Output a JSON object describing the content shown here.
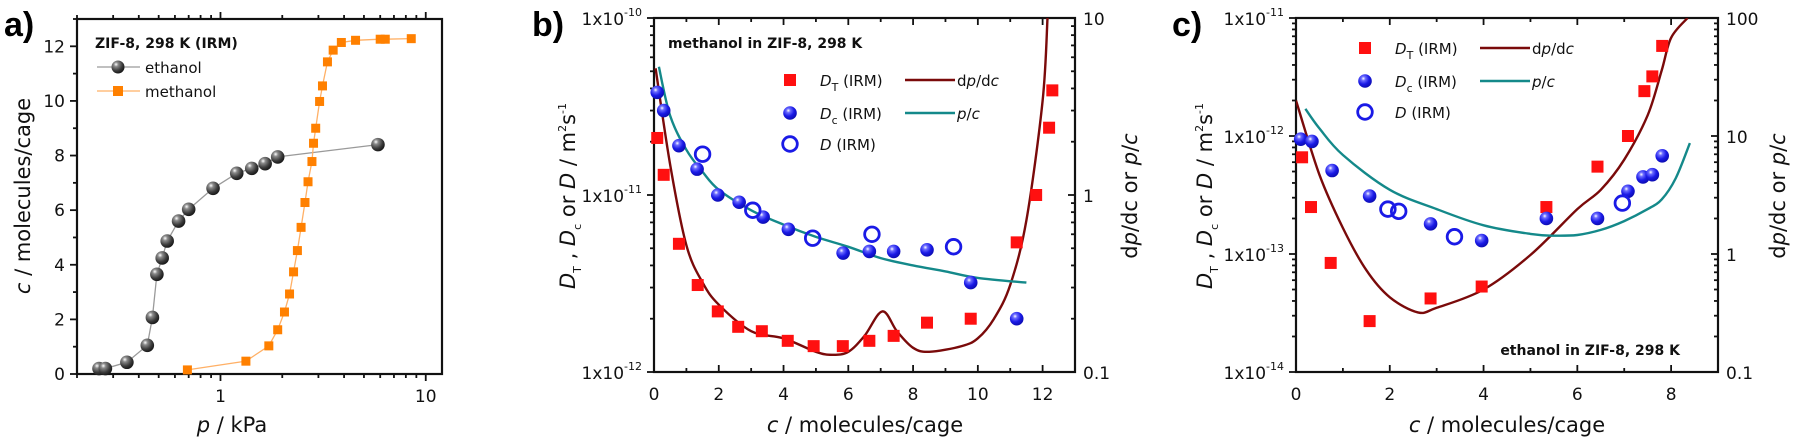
{
  "colors": {
    "ethanol": "#444444",
    "ethanol_line": "#9a9a9a",
    "methanol": "#ff8000",
    "methanol_line": "#ffb066",
    "DT": "#ff1010",
    "Dc": "#1a1ae6",
    "D": "#1a1ae6",
    "dpdc": "#7a0a0a",
    "pc": "#14898a"
  },
  "chart_data": [
    {
      "panel": "a)",
      "type": "scatter",
      "title": "",
      "annotation": "ZIF-8, 298 K (IRM)",
      "xlabel": "p / kPa",
      "ylabel": "c / molecules/cage",
      "xscale": "log",
      "xlim": [
        0.2,
        12
      ],
      "ylim": [
        0,
        13
      ],
      "xticks": [
        1,
        10
      ],
      "xtick_labels": [
        "1",
        "10"
      ],
      "yticks": [
        0,
        2,
        4,
        6,
        8,
        10,
        12
      ],
      "ytick_labels": [
        "0",
        "2",
        "4",
        "6",
        "8",
        "10",
        "12"
      ],
      "legend_position": "top-left",
      "series": [
        {
          "name": "ethanol",
          "marker": "sphere",
          "x": [
            0.256,
            0.275,
            0.35,
            0.44,
            0.466,
            0.49,
            0.52,
            0.55,
            0.625,
            0.7,
            0.92,
            1.2,
            1.42,
            1.65,
            1.9,
            5.85
          ],
          "y": [
            0.2,
            0.2,
            0.43,
            1.05,
            2.07,
            3.65,
            4.25,
            4.87,
            5.6,
            6.03,
            6.8,
            7.35,
            7.53,
            7.7,
            7.95,
            8.4
          ]
        },
        {
          "name": "methanol",
          "marker": "square",
          "x": [
            0.69,
            1.33,
            1.72,
            1.9,
            2.05,
            2.17,
            2.27,
            2.37,
            2.47,
            2.58,
            2.67,
            2.79,
            2.84,
            2.91,
            3.04,
            3.14,
            3.32,
            3.54,
            3.88,
            4.55,
            6.0,
            6.35,
            8.5
          ],
          "y": [
            0.15,
            0.47,
            1.03,
            1.62,
            2.27,
            2.93,
            3.74,
            4.52,
            5.37,
            6.28,
            7.04,
            7.78,
            8.45,
            9.0,
            9.98,
            10.55,
            11.43,
            11.86,
            12.14,
            12.22,
            12.26,
            12.26,
            12.28
          ]
        }
      ]
    },
    {
      "panel": "b)",
      "type": "scatter",
      "annotation": "methanol in ZIF-8, 298 K",
      "xlabel": "c / molecules/cage",
      "ylabel": "D_T , D_c or D / m^2 s^-1",
      "ylabel_right": "dp/dc or p/c",
      "xlim": [
        0,
        13
      ],
      "ylim": [
        1e-12,
        1e-10
      ],
      "ylim_right": [
        0.1,
        10
      ],
      "yscale": "log",
      "xticks": [
        0,
        2,
        4,
        6,
        8,
        10,
        12
      ],
      "xtick_labels": [
        "0",
        "2",
        "4",
        "6",
        "8",
        "10",
        "12"
      ],
      "ytick_labels": [
        {
          "base": "1x10",
          "exp": "-12"
        },
        {
          "base": "1x10",
          "exp": "-11"
        },
        {
          "base": "1x10",
          "exp": "-10"
        }
      ],
      "ytick_labels_right": [
        "0.1",
        "1",
        "10"
      ],
      "legend_position": "top-right",
      "legend": [
        {
          "label": "D",
          "sub": "T",
          "suffix": " (IRM)"
        },
        {
          "label": "D",
          "sub": "c",
          "suffix": " (IRM)"
        },
        {
          "label": "D",
          "sub": "",
          "suffix": "  (IRM)"
        },
        {
          "label": "dp/dc"
        },
        {
          "label": "p/c"
        }
      ],
      "series": [
        {
          "name": "D_T (IRM)",
          "marker": "square",
          "axis": "left",
          "x": [
            0.1,
            0.3,
            0.77,
            1.35,
            1.97,
            2.6,
            3.33,
            4.13,
            4.93,
            5.83,
            6.65,
            7.4,
            8.43,
            9.78,
            11.2,
            11.8,
            12.2,
            12.3
          ],
          "y": [
            2.1e-11,
            1.3e-11,
            5.3e-12,
            3.1e-12,
            2.2e-12,
            1.8e-12,
            1.7e-12,
            1.5e-12,
            1.4e-12,
            1.4e-12,
            1.5e-12,
            1.6e-12,
            1.9e-12,
            2e-12,
            5.4e-12,
            1e-11,
            2.4e-11,
            3.9e-11
          ]
        },
        {
          "name": "D_c (IRM)",
          "marker": "sphere",
          "axis": "left",
          "x": [
            0.1,
            0.3,
            0.77,
            1.33,
            1.97,
            2.63,
            3.37,
            4.15,
            5.84,
            6.65,
            7.4,
            8.43,
            9.78,
            11.2
          ],
          "y": [
            3.8e-11,
            3e-11,
            1.9e-11,
            1.4e-11,
            1e-11,
            9.1e-12,
            7.5e-12,
            6.4e-12,
            4.7e-12,
            4.8e-12,
            4.8e-12,
            4.9e-12,
            3.2e-12,
            2e-12
          ]
        },
        {
          "name": "D (IRM)",
          "marker": "open-circle",
          "axis": "left",
          "x": [
            1.5,
            3.05,
            4.9,
            6.73,
            9.25
          ],
          "y": [
            1.7e-11,
            8.2e-12,
            5.7e-12,
            6e-12,
            5.1e-12
          ]
        },
        {
          "name": "dp/dc",
          "marker": "line",
          "axis": "right",
          "x": [
            0.05,
            0.5,
            1,
            1.5,
            2,
            3,
            4,
            5,
            5.5,
            6,
            6.5,
            7.05,
            7.5,
            8,
            8.5,
            9.5,
            10,
            10.5,
            11,
            11.5,
            12,
            12.15
          ],
          "y": [
            5.2,
            1.48,
            0.52,
            0.32,
            0.24,
            0.17,
            0.155,
            0.13,
            0.125,
            0.13,
            0.16,
            0.22,
            0.17,
            0.137,
            0.13,
            0.14,
            0.155,
            0.2,
            0.31,
            0.72,
            3.4,
            10
          ]
        },
        {
          "name": "p/c",
          "marker": "line",
          "axis": "right",
          "x": [
            0.15,
            0.5,
            1,
            1.5,
            2,
            3,
            4,
            5,
            6,
            7,
            8,
            9,
            10,
            11.5
          ],
          "y": [
            5.3,
            2.8,
            1.8,
            1.35,
            1.07,
            0.82,
            0.68,
            0.58,
            0.51,
            0.44,
            0.4,
            0.37,
            0.34,
            0.32
          ]
        }
      ]
    },
    {
      "panel": "c)",
      "type": "scatter",
      "annotation": "ethanol in ZIF-8, 298 K",
      "xlabel": "c / molecules/cage",
      "ylabel": "D_T , D_c or D / m^2 s^-1",
      "ylabel_right": "dp/dc or p/c",
      "xlim": [
        0,
        9
      ],
      "ylim": [
        1e-14,
        1e-11
      ],
      "ylim_right": [
        0.1,
        100
      ],
      "yscale": "log",
      "xticks": [
        0,
        2,
        4,
        6,
        8
      ],
      "xtick_labels": [
        "0",
        "2",
        "4",
        "6",
        "8"
      ],
      "ytick_labels": [
        {
          "base": "1x10",
          "exp": "-14"
        },
        {
          "base": "1x10",
          "exp": "-13"
        },
        {
          "base": "1x10",
          "exp": "-12"
        },
        {
          "base": "1x10",
          "exp": "-11"
        }
      ],
      "ytick_labels_right": [
        "0.1",
        "1",
        "10",
        "100"
      ],
      "legend_position": "top-left",
      "legend": [
        {
          "label": "D",
          "sub": "T",
          "suffix": " (IRM)"
        },
        {
          "label": "D",
          "sub": "c",
          "suffix": " (IRM)"
        },
        {
          "label": "D",
          "sub": "",
          "suffix": "  (IRM)"
        },
        {
          "label": "dp/dc"
        },
        {
          "label": "p/c"
        }
      ],
      "series": [
        {
          "name": "D_T (IRM)",
          "marker": "square",
          "axis": "left",
          "x": [
            0.13,
            0.32,
            0.74,
            1.57,
            2.87,
            3.96,
            5.34,
            6.43,
            7.08,
            7.43,
            7.6,
            7.81
          ],
          "y": [
            6.6e-13,
            2.5e-13,
            8.4e-14,
            2.7e-14,
            4.2e-14,
            5.3e-14,
            2.5e-13,
            5.5e-13,
            1e-12,
            2.4e-12,
            3.2e-12,
            5.8e-12
          ]
        },
        {
          "name": "D_c (IRM)",
          "marker": "sphere",
          "axis": "left",
          "x": [
            0.1,
            0.34,
            0.77,
            1.57,
            2.87,
            3.96,
            5.34,
            6.43,
            7.08,
            7.4,
            7.6,
            7.81
          ],
          "y": [
            9.4e-13,
            9e-13,
            5.1e-13,
            3.1e-13,
            1.8e-13,
            1.3e-13,
            2e-13,
            2e-13,
            3.4e-13,
            4.5e-13,
            4.7e-13,
            6.8e-13
          ]
        },
        {
          "name": "D (IRM)",
          "marker": "open-circle",
          "axis": "left",
          "x": [
            1.96,
            2.19,
            3.38,
            6.96
          ],
          "y": [
            2.4e-13,
            2.3e-13,
            1.4e-13,
            2.7e-13
          ]
        },
        {
          "name": "dp/dc",
          "marker": "line",
          "axis": "right",
          "x": [
            0,
            0.5,
            1,
            1.5,
            2,
            2.6,
            3,
            4,
            5,
            6,
            6.5,
            7,
            7.5,
            7.8,
            8,
            8.35
          ],
          "y": [
            20,
            4.7,
            1.66,
            0.73,
            0.43,
            0.32,
            0.35,
            0.5,
            0.98,
            2.4,
            3.5,
            6.3,
            15,
            36,
            68,
            100
          ]
        },
        {
          "name": "p/c",
          "marker": "line",
          "axis": "right",
          "x": [
            0.2,
            0.5,
            1,
            2,
            3,
            4,
            5,
            5.5,
            6,
            6.5,
            7,
            7.5,
            7.8,
            8.1,
            8.4
          ],
          "y": [
            17,
            11.6,
            6.9,
            3.5,
            2.4,
            1.75,
            1.48,
            1.43,
            1.45,
            1.6,
            1.9,
            2.4,
            2.9,
            4.4,
            8.7
          ]
        }
      ]
    }
  ]
}
